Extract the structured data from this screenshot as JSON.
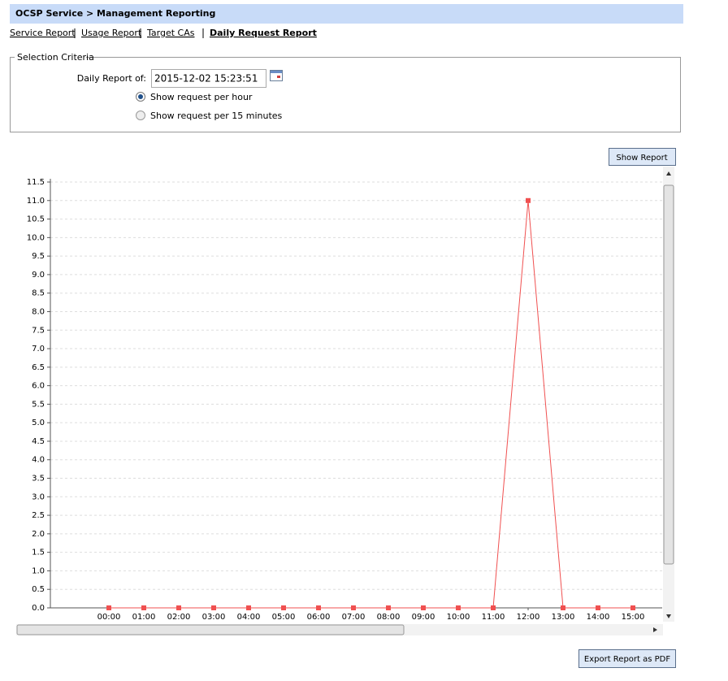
{
  "header": {
    "title": "OCSP Service > Management Reporting"
  },
  "nav": [
    "Service Report",
    "Usage Report",
    "Target CAs",
    "Daily Request Report"
  ],
  "criteria": {
    "legend": "Selection Criteria",
    "label": "Daily Report of:",
    "date_value": "2015-12-02 15:23:51",
    "options": [
      "Show request per hour",
      "Show request per 15 minutes"
    ]
  },
  "buttons": {
    "show": "Show Report",
    "export": "Export Report as PDF"
  },
  "chart_data": {
    "type": "line",
    "categories": [
      "00:00",
      "01:00",
      "02:00",
      "03:00",
      "04:00",
      "05:00",
      "06:00",
      "07:00",
      "08:00",
      "09:00",
      "10:00",
      "11:00",
      "12:00",
      "13:00",
      "14:00",
      "15:00"
    ],
    "series": [
      {
        "color": "#f05050",
        "values": [
          0,
          0,
          0,
          0,
          0,
          0,
          0,
          0,
          0,
          0,
          0,
          0,
          11,
          0,
          0,
          0
        ]
      }
    ],
    "ylim": [
      0,
      11.5
    ],
    "yticks": [
      {
        "value": 0,
        "label": "0.0"
      },
      0.5,
      {
        "value": 1,
        "label": "1.0"
      },
      1.5,
      {
        "value": 2,
        "label": "2.0"
      },
      2.5,
      {
        "value": 3,
        "label": "3.0"
      },
      3.5,
      {
        "value": 4,
        "label": "4.0"
      },
      4.5,
      {
        "value": 5,
        "label": "5.0"
      },
      5.5,
      {
        "value": 6,
        "label": "6.0"
      },
      6.5,
      {
        "value": 7,
        "label": "7.0"
      },
      7.5,
      {
        "value": 8,
        "label": "8.0"
      },
      8.5,
      {
        "value": 9,
        "label": "9.0"
      },
      9.5,
      {
        "value": 10,
        "label": "10.0"
      },
      10.5,
      {
        "value": 11,
        "label": "11.0"
      },
      11.5
    ],
    "grid": true
  }
}
